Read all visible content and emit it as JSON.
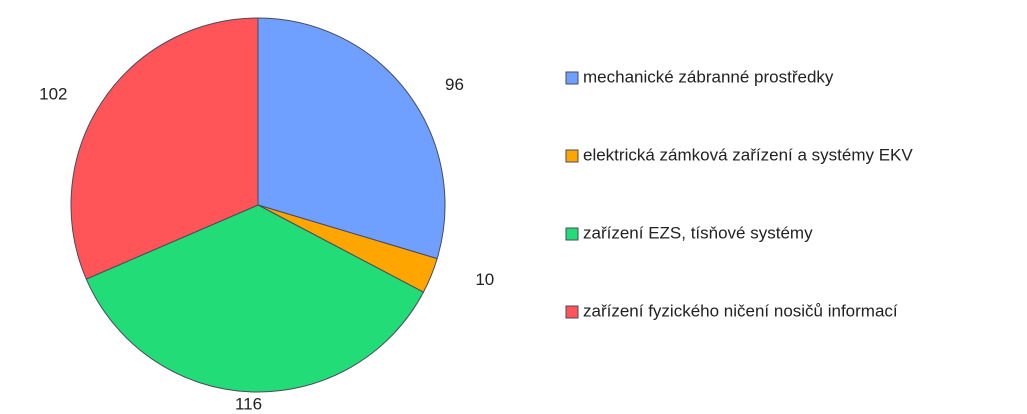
{
  "chart_data": {
    "type": "pie",
    "categories": [
      "mechanické zábranné prostředky",
      "elektrická zámková zařízení a systémy EKV",
      "zařízení EZS, tísňové systémy",
      "zařízení fyzického ničení nosičů informací"
    ],
    "values": [
      96,
      10,
      116,
      102
    ],
    "colors": [
      "#70a0ff",
      "#ffa500",
      "#22dd77",
      "#ff5558"
    ],
    "legend": "right"
  }
}
